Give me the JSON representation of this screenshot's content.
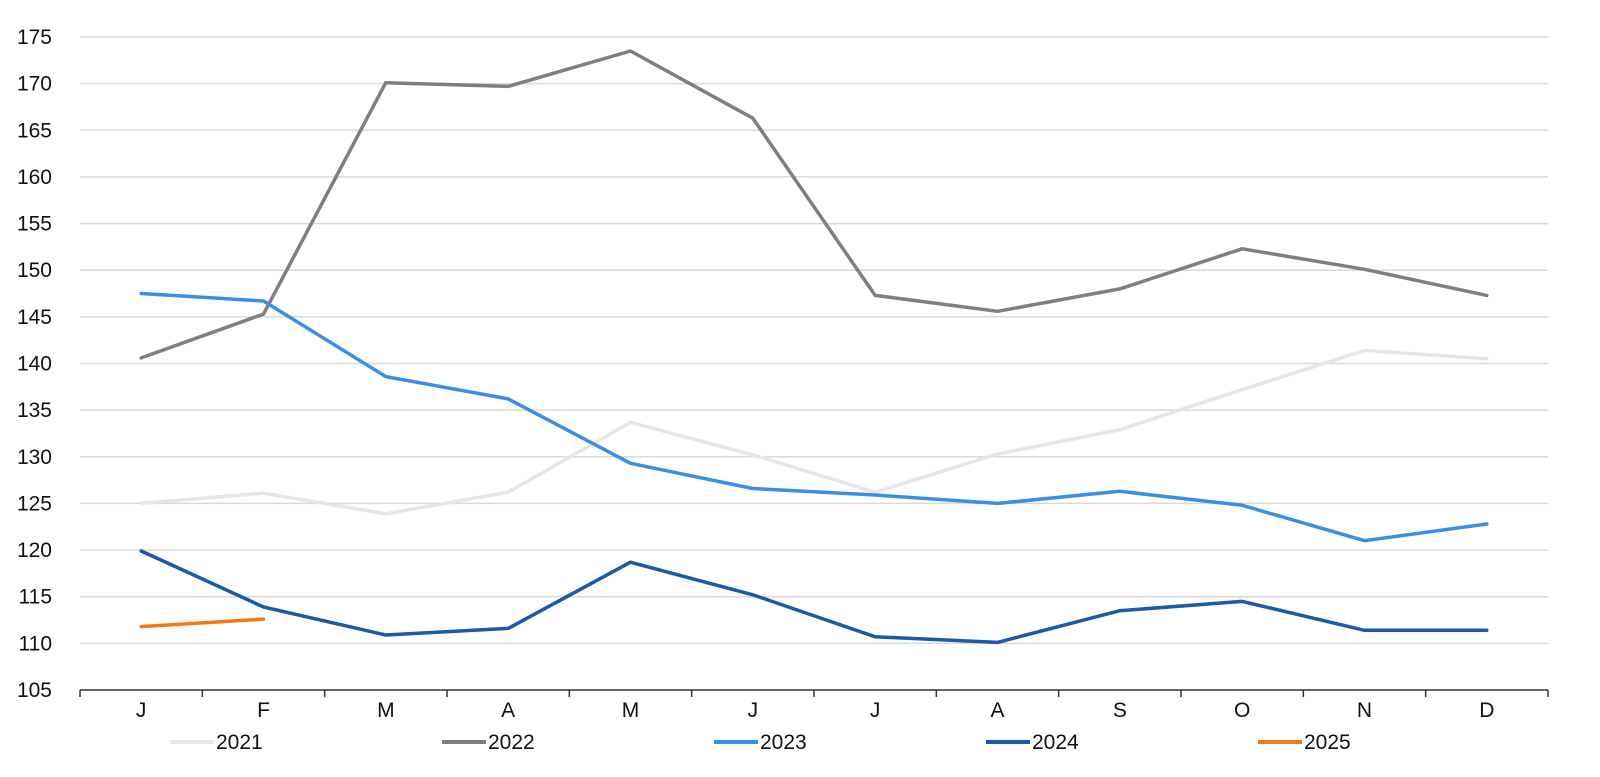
{
  "chart_data": {
    "type": "line",
    "title": "",
    "xlabel": "",
    "ylabel": "",
    "categories": [
      "J",
      "F",
      "M",
      "A",
      "M",
      "J",
      "J",
      "A",
      "S",
      "O",
      "N",
      "D"
    ],
    "ylim": [
      105,
      175
    ],
    "yticks": [
      105,
      110,
      115,
      120,
      125,
      130,
      135,
      140,
      145,
      150,
      155,
      160,
      165,
      170,
      175
    ],
    "grid": true,
    "legend_position": "bottom",
    "series": [
      {
        "name": "2021",
        "color": "#e6e6e6",
        "values": [
          125.0,
          126.1,
          123.9,
          126.2,
          133.7,
          130.2,
          126.2,
          130.3,
          132.9,
          137.2,
          141.4,
          140.5
        ]
      },
      {
        "name": "2022",
        "color": "#7f7f7f",
        "values": [
          140.6,
          145.3,
          170.1,
          169.7,
          173.5,
          166.3,
          147.3,
          145.6,
          148.0,
          152.3,
          150.1,
          147.3
        ]
      },
      {
        "name": "2023",
        "color": "#3a8ee6",
        "values": [
          147.5,
          146.7,
          138.6,
          136.2,
          129.3,
          126.6,
          125.9,
          125.0,
          126.3,
          124.8,
          121.0,
          122.8
        ]
      },
      {
        "name": "2024",
        "color": "#1a5aa6",
        "values": [
          119.9,
          113.9,
          110.9,
          111.6,
          118.7,
          115.2,
          110.7,
          110.1,
          113.5,
          114.5,
          111.4,
          111.4
        ]
      },
      {
        "name": "2025",
        "color": "#f07a1a",
        "values": [
          111.8,
          112.6,
          null,
          null,
          null,
          null,
          null,
          null,
          null,
          null,
          null,
          null
        ]
      }
    ]
  }
}
